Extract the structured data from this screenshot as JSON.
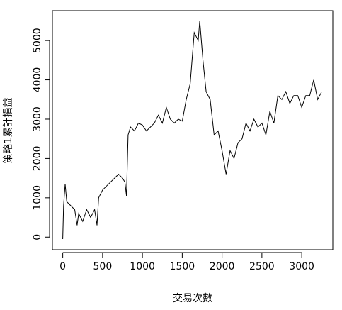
{
  "chart_data": {
    "type": "line",
    "xlabel": "交易次數",
    "ylabel": "策略1累計損益",
    "x": [
      0,
      10,
      30,
      50,
      100,
      150,
      180,
      200,
      250,
      300,
      350,
      400,
      430,
      450,
      500,
      550,
      600,
      650,
      700,
      750,
      780,
      800,
      820,
      850,
      900,
      950,
      1000,
      1050,
      1100,
      1150,
      1200,
      1250,
      1300,
      1350,
      1400,
      1450,
      1500,
      1550,
      1600,
      1650,
      1700,
      1720,
      1760,
      1800,
      1850,
      1900,
      1950,
      2000,
      2050,
      2100,
      2150,
      2200,
      2250,
      2300,
      2350,
      2400,
      2450,
      2500,
      2550,
      2600,
      2650,
      2700,
      2750,
      2800,
      2850,
      2900,
      2950,
      3000,
      3050,
      3100,
      3150,
      3200,
      3250
    ],
    "series": [
      {
        "color": "#000000",
        "values": [
          -50,
          800,
          1350,
          900,
          800,
          700,
          300,
          600,
          400,
          700,
          500,
          700,
          300,
          1000,
          1200,
          1300,
          1400,
          1500,
          1600,
          1500,
          1400,
          1050,
          2600,
          2800,
          2700,
          2900,
          2850,
          2700,
          2800,
          2900,
          3100,
          2900,
          3300,
          3000,
          2900,
          3000,
          2950,
          3500,
          3900,
          5200,
          5000,
          5500,
          4500,
          3700,
          3500,
          2600,
          2700,
          2200,
          1600,
          2200,
          2000,
          2400,
          2500,
          2900,
          2700,
          3000,
          2800,
          2900,
          2600,
          3200,
          2900,
          3600,
          3500,
          3700,
          3400,
          3600,
          3600,
          3300,
          3600,
          3600,
          4000,
          3500,
          3700
        ]
      }
    ],
    "xlim": [
      -130,
      3390
    ],
    "ylim": [
      -320,
      5760
    ],
    "xticks": [
      0,
      500,
      1000,
      1500,
      2000,
      2500,
      3000
    ],
    "yticks": [
      0,
      1000,
      2000,
      3000,
      4000,
      5000
    ]
  }
}
